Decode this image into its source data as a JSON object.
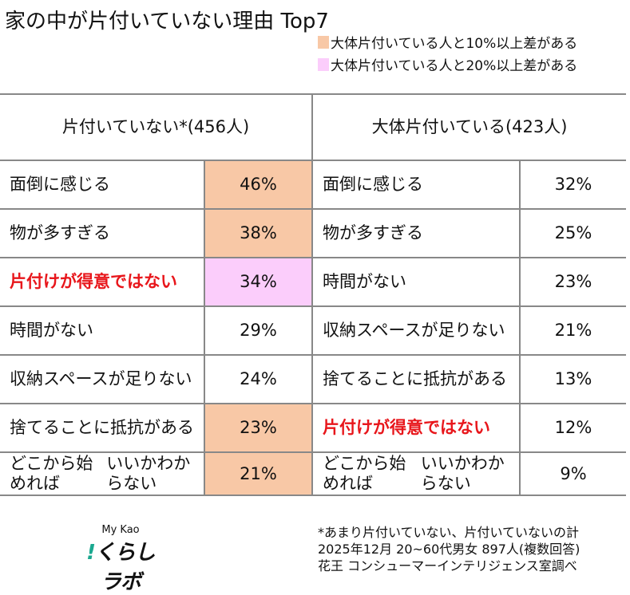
{
  "title": "家の中が片付いていない理由 Top7",
  "legend": [
    {
      "label": "大体片付いている人と10%以上差がある",
      "color": "#f8c8a6"
    },
    {
      "label": "大体片付いている人と20%以上差がある",
      "color": "#fbcdfb"
    }
  ],
  "chart_data": {
    "type": "table",
    "columns": [
      {
        "header": "片付いていない*(456人)",
        "rows": [
          {
            "reason": [
              "面倒に感じる"
            ],
            "pct": "46%",
            "highlight": "10"
          },
          {
            "reason": [
              "物が多すぎる"
            ],
            "pct": "38%",
            "highlight": "10"
          },
          {
            "reason": [
              "片付けが得意",
              "ではない"
            ],
            "pct": "34%",
            "highlight": "20",
            "emphasis": true
          },
          {
            "reason": [
              "時間がない"
            ],
            "pct": "29%",
            "highlight": ""
          },
          {
            "reason": [
              "収納スペースが",
              "足りない"
            ],
            "pct": "24%",
            "highlight": ""
          },
          {
            "reason": [
              "捨てることに",
              "抵抗がある"
            ],
            "pct": "23%",
            "highlight": "10"
          },
          {
            "reason": [
              "どこから始めれば",
              "いいかわからない"
            ],
            "pct": "21%",
            "highlight": "10"
          }
        ]
      },
      {
        "header": "大体片付いている(423人)",
        "rows": [
          {
            "reason": [
              "面倒に感じる"
            ],
            "pct": "32%"
          },
          {
            "reason": [
              "物が多すぎる"
            ],
            "pct": "25%"
          },
          {
            "reason": [
              "時間がない"
            ],
            "pct": "23%"
          },
          {
            "reason": [
              "収納スペースが",
              "足りない"
            ],
            "pct": "21%"
          },
          {
            "reason": [
              "捨てることに",
              "抵抗がある"
            ],
            "pct": "13%"
          },
          {
            "reason": [
              "片付けが得意",
              "ではない"
            ],
            "pct": "12%",
            "emphasis": true
          },
          {
            "reason": [
              "どこから始めれば",
              "いいかわからない"
            ],
            "pct": "9%"
          }
        ]
      }
    ]
  },
  "logo": {
    "line1": "My Kao",
    "line2": "くらしラボ",
    "mark": "!"
  },
  "notes": [
    "*あまり片付いていない、片付いていないの計",
    "2025年12月 20~60代男女 897人(複数回答)",
    "花王 コンシューマーインテリジェンス室調べ"
  ]
}
